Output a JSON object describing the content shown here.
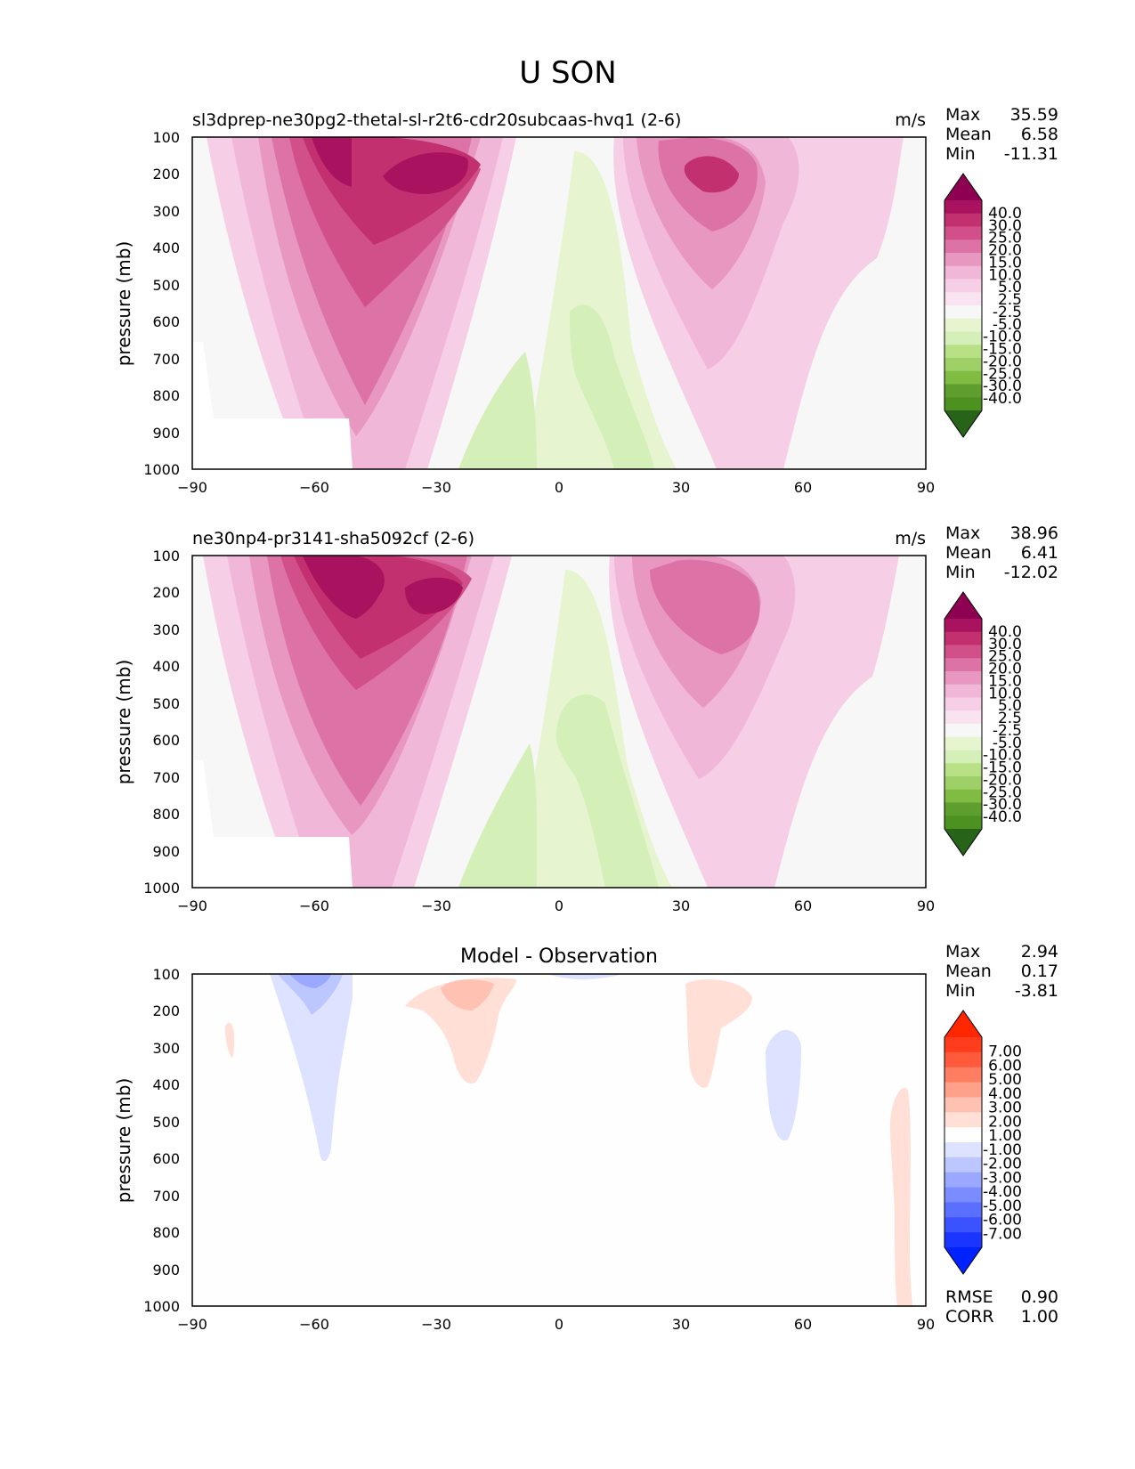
{
  "figure": {
    "title": "U SON"
  },
  "chart_data": [
    {
      "type": "contour",
      "title_left": "sl3dprep-ne30pg2-thetal-sl-r2t6-cdr20subcaas-hvq1 (2-6)",
      "units": "m/s",
      "ylabel": "pressure (mb)",
      "xlim": [
        -90,
        90
      ],
      "ylim": [
        1000,
        100
      ],
      "x_ticks": [
        "−90",
        "−60",
        "−30",
        "0",
        "30",
        "60",
        "90"
      ],
      "y_ticks": [
        "100",
        "200",
        "300",
        "400",
        "500",
        "600",
        "700",
        "800",
        "900",
        "1000"
      ],
      "stats": [
        {
          "label": "Max",
          "value": "35.59"
        },
        {
          "label": "Mean",
          "value": "6.58"
        },
        {
          "label": "Min",
          "value": "-11.31"
        }
      ],
      "colorbar": {
        "labels": [
          "40.0",
          "30.0",
          "25.0",
          "20.0",
          "15.0",
          "10.0",
          "5.0",
          "2.5",
          "-2.5",
          "-5.0",
          "-10.0",
          "-15.0",
          "-20.0",
          "-25.0",
          "-30.0",
          "-40.0"
        ],
        "colors": [
          "#8e0152",
          "#a9125f",
          "#c2306f",
          "#d2508a",
          "#dd72a6",
          "#e897c1",
          "#f1b7d8",
          "#f6cfe6",
          "#fae3f0",
          "#f7f7f7",
          "#e6f5d0",
          "#d5efb9",
          "#b8e186",
          "#9fd068",
          "#7fbc41",
          "#5e9e2e",
          "#4d9221",
          "#276419"
        ]
      },
      "features": [
        {
          "lat": -50,
          "p": 150,
          "u": 35.59
        },
        {
          "lat": 40,
          "p": 210,
          "u": 30
        },
        {
          "lat": 5,
          "p": 700,
          "u": -11.31
        }
      ]
    },
    {
      "type": "contour",
      "title_left": "ne30np4-pr3141-sha5092cf (2-6)",
      "units": "m/s",
      "ylabel": "pressure (mb)",
      "xlim": [
        -90,
        90
      ],
      "ylim": [
        1000,
        100
      ],
      "x_ticks": [
        "−90",
        "−60",
        "−30",
        "0",
        "30",
        "60",
        "90"
      ],
      "y_ticks": [
        "100",
        "200",
        "300",
        "400",
        "500",
        "600",
        "700",
        "800",
        "900",
        "1000"
      ],
      "stats": [
        {
          "label": "Max",
          "value": "38.96"
        },
        {
          "label": "Mean",
          "value": "6.41"
        },
        {
          "label": "Min",
          "value": "-12.02"
        }
      ],
      "colorbar": {
        "labels": [
          "40.0",
          "30.0",
          "25.0",
          "20.0",
          "15.0",
          "10.0",
          "5.0",
          "2.5",
          "-2.5",
          "-5.0",
          "-10.0",
          "-15.0",
          "-20.0",
          "-25.0",
          "-30.0",
          "-40.0"
        ],
        "colors": [
          "#8e0152",
          "#a9125f",
          "#c2306f",
          "#d2508a",
          "#dd72a6",
          "#e897c1",
          "#f1b7d8",
          "#f6cfe6",
          "#fae3f0",
          "#f7f7f7",
          "#e6f5d0",
          "#d5efb9",
          "#b8e186",
          "#9fd068",
          "#7fbc41",
          "#5e9e2e",
          "#4d9221",
          "#276419"
        ]
      },
      "features": [
        {
          "lat": -50,
          "p": 150,
          "u": 38.96
        },
        {
          "lat": 40,
          "p": 220,
          "u": 25
        },
        {
          "lat": 5,
          "p": 700,
          "u": -12.02
        }
      ]
    },
    {
      "type": "contour",
      "title_center": "Model - Observation",
      "ylabel": "pressure (mb)",
      "xlim": [
        -90,
        90
      ],
      "ylim": [
        1000,
        100
      ],
      "x_ticks": [
        "−90",
        "−60",
        "−30",
        "0",
        "30",
        "60",
        "90"
      ],
      "y_ticks": [
        "100",
        "200",
        "300",
        "400",
        "500",
        "600",
        "700",
        "800",
        "900",
        "1000"
      ],
      "stats": [
        {
          "label": "Max",
          "value": "2.94"
        },
        {
          "label": "Mean",
          "value": "0.17"
        },
        {
          "label": "Min",
          "value": "-3.81"
        }
      ],
      "metrics": [
        {
          "label": "RMSE",
          "value": "0.90"
        },
        {
          "label": "CORR",
          "value": "1.00"
        }
      ],
      "colorbar": {
        "labels": [
          "7.00",
          "6.00",
          "5.00",
          "4.00",
          "3.00",
          "2.00",
          "1.00",
          "-1.00",
          "-2.00",
          "-3.00",
          "-4.00",
          "-5.00",
          "-6.00",
          "-7.00"
        ],
        "colors": [
          "#ff2600",
          "#ff3d1c",
          "#ff5a3c",
          "#ff7d61",
          "#ffa08a",
          "#ffc1b1",
          "#ffdfd6",
          "#fefefe",
          "#dce2ff",
          "#bcc6ff",
          "#9aa8ff",
          "#7a8cff",
          "#5a6eff",
          "#3a52ff",
          "#1a35ff",
          "#0022ff"
        ]
      },
      "features": [
        {
          "lat": -60,
          "p": 120,
          "u": -3.81
        },
        {
          "lat": -22,
          "p": 150,
          "u": 2.94
        }
      ]
    }
  ]
}
